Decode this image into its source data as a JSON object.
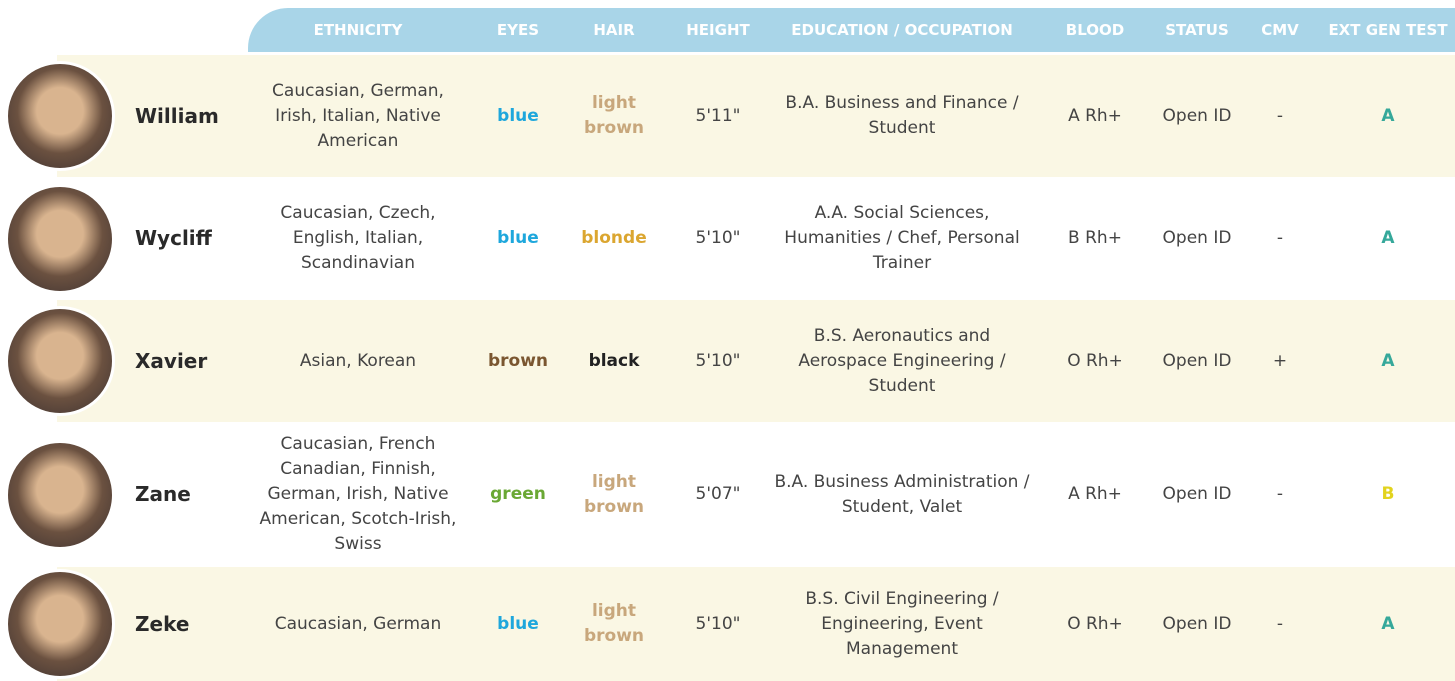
{
  "table": {
    "headers": [
      "ETHNICITY",
      "EYES",
      "HAIR",
      "HEIGHT",
      "EDUCATION / OCCUPATION",
      "BLOOD",
      "STATUS",
      "CMV",
      "EXT GEN TEST"
    ],
    "rows": [
      {
        "name": "William",
        "ethnicity": "Caucasian, German, Irish, Italian, Native American",
        "eyes": {
          "text": "blue",
          "color": "#1ea7dc"
        },
        "hair": {
          "text": "light brown",
          "color": "#c8a77c"
        },
        "height": "5'11\"",
        "education": "B.A. Business and Finance / Student",
        "blood": "A Rh+",
        "status": "Open ID",
        "cmv": "-",
        "ext_gen_test": {
          "text": "A",
          "color": "#35a89a"
        }
      },
      {
        "name": "Wycliff",
        "ethnicity": "Caucasian, Czech, English, Italian, Scandinavian",
        "eyes": {
          "text": "blue",
          "color": "#1ea7dc"
        },
        "hair": {
          "text": "blonde",
          "color": "#dba630"
        },
        "height": "5'10\"",
        "education": "A.A. Social Sciences, Humanities / Chef, Personal Trainer",
        "blood": "B Rh+",
        "status": "Open ID",
        "cmv": "-",
        "ext_gen_test": {
          "text": "A",
          "color": "#35a89a"
        }
      },
      {
        "name": "Xavier",
        "ethnicity": "Asian, Korean",
        "eyes": {
          "text": "brown",
          "color": "#7a5630"
        },
        "hair": {
          "text": "black",
          "color": "#222222"
        },
        "height": "5'10\"",
        "education": "B.S. Aeronautics and Aerospace Engineering / Student",
        "blood": "O Rh+",
        "status": "Open ID",
        "cmv": "+",
        "ext_gen_test": {
          "text": "A",
          "color": "#35a89a"
        }
      },
      {
        "name": "Zane",
        "ethnicity": "Caucasian, French Canadian, Finnish, German, Irish, Native American, Scotch-Irish, Swiss",
        "eyes": {
          "text": "green",
          "color": "#6aa834"
        },
        "hair": {
          "text": "light brown",
          "color": "#c8a77c"
        },
        "height": "5'07\"",
        "education": "B.A. Business Administration / Student, Valet",
        "blood": "A Rh+",
        "status": "Open ID",
        "cmv": "-",
        "ext_gen_test": {
          "text": "B",
          "color": "#e2d31e"
        }
      },
      {
        "name": "Zeke",
        "ethnicity": "Caucasian, German",
        "eyes": {
          "text": "blue",
          "color": "#1ea7dc"
        },
        "hair": {
          "text": "light brown",
          "color": "#c8a77c"
        },
        "height": "5'10\"",
        "education": "B.S. Civil Engineering / Engineering, Event Management",
        "blood": "O Rh+",
        "status": "Open ID",
        "cmv": "-",
        "ext_gen_test": {
          "text": "A",
          "color": "#35a89a"
        }
      }
    ]
  }
}
